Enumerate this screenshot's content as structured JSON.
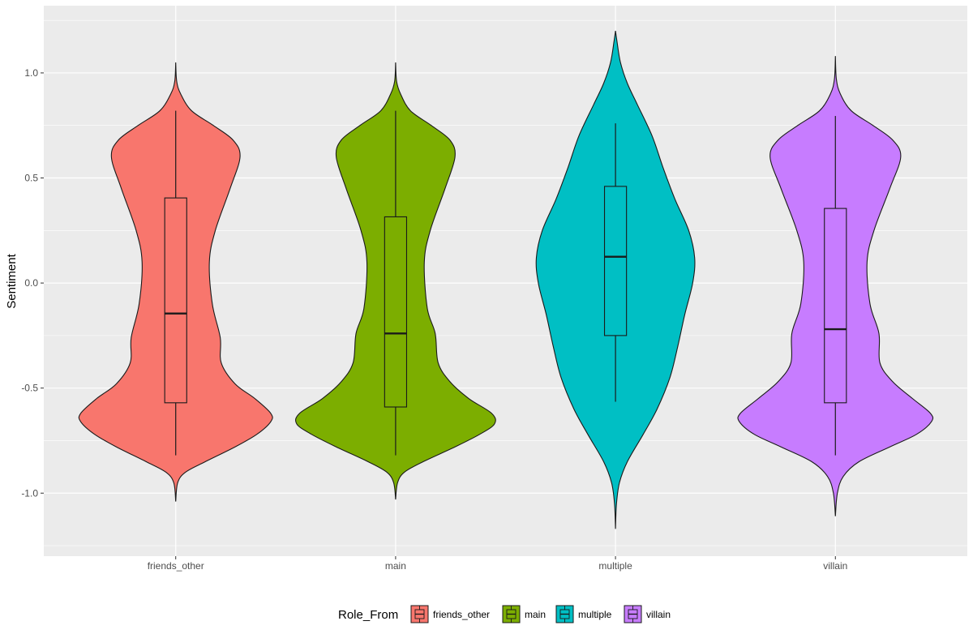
{
  "chart_data": {
    "type": "violin",
    "title": "",
    "xlabel": "",
    "ylabel": "Sentiment",
    "ylim": [
      -1.3,
      1.32
    ],
    "y_ticks": [
      "-1.0",
      "-0.5",
      "0.0",
      "0.5",
      "1.0"
    ],
    "y_tick_values": [
      -1.0,
      -0.5,
      0.0,
      0.5,
      1.0
    ],
    "grid": true,
    "legend": {
      "title": "Role_From",
      "position": "bottom"
    },
    "categories": [
      "friends_other",
      "main",
      "multiple",
      "villain"
    ],
    "colors": [
      "#f8766d",
      "#7cae00",
      "#00bfc4",
      "#c77cff"
    ],
    "series": [
      {
        "name": "friends_other",
        "violin_range": [
          -1.04,
          1.05
        ],
        "density_profile": [
          [
            -1.04,
            0.0
          ],
          [
            -0.95,
            0.02
          ],
          [
            -0.9,
            0.1
          ],
          [
            -0.85,
            0.3
          ],
          [
            -0.78,
            0.6
          ],
          [
            -0.72,
            0.82
          ],
          [
            -0.66,
            0.96
          ],
          [
            -0.62,
            0.96
          ],
          [
            -0.55,
            0.8
          ],
          [
            -0.48,
            0.6
          ],
          [
            -0.38,
            0.46
          ],
          [
            -0.26,
            0.45
          ],
          [
            -0.1,
            0.37
          ],
          [
            0.1,
            0.34
          ],
          [
            0.25,
            0.4
          ],
          [
            0.45,
            0.55
          ],
          [
            0.6,
            0.65
          ],
          [
            0.68,
            0.58
          ],
          [
            0.75,
            0.38
          ],
          [
            0.82,
            0.16
          ],
          [
            0.9,
            0.05
          ],
          [
            0.96,
            0.01
          ],
          [
            1.05,
            0.0
          ]
        ],
        "box": {
          "whisker_low": -0.82,
          "q1": -0.57,
          "median": -0.145,
          "q3": 0.405,
          "whisker_high": 0.82
        }
      },
      {
        "name": "main",
        "violin_range": [
          -1.03,
          1.05
        ],
        "density_profile": [
          [
            -1.03,
            0.0
          ],
          [
            -0.95,
            0.02
          ],
          [
            -0.9,
            0.09
          ],
          [
            -0.85,
            0.28
          ],
          [
            -0.78,
            0.6
          ],
          [
            -0.72,
            0.85
          ],
          [
            -0.67,
            1.0
          ],
          [
            -0.62,
            0.97
          ],
          [
            -0.55,
            0.74
          ],
          [
            -0.47,
            0.55
          ],
          [
            -0.38,
            0.43
          ],
          [
            -0.24,
            0.4
          ],
          [
            -0.12,
            0.32
          ],
          [
            0.1,
            0.29
          ],
          [
            0.25,
            0.35
          ],
          [
            0.45,
            0.5
          ],
          [
            0.6,
            0.6
          ],
          [
            0.68,
            0.55
          ],
          [
            0.75,
            0.36
          ],
          [
            0.82,
            0.15
          ],
          [
            0.9,
            0.05
          ],
          [
            0.96,
            0.01
          ],
          [
            1.05,
            0.0
          ]
        ],
        "box": {
          "whisker_low": -0.82,
          "q1": -0.59,
          "median": -0.24,
          "q3": 0.315,
          "whisker_high": 0.82
        }
      },
      {
        "name": "multiple",
        "violin_range": [
          -1.17,
          1.2
        ],
        "density_profile": [
          [
            -1.17,
            0.0
          ],
          [
            -1.05,
            0.01
          ],
          [
            -0.95,
            0.04
          ],
          [
            -0.85,
            0.12
          ],
          [
            -0.72,
            0.28
          ],
          [
            -0.6,
            0.42
          ],
          [
            -0.45,
            0.55
          ],
          [
            -0.3,
            0.63
          ],
          [
            -0.15,
            0.7
          ],
          [
            0.0,
            0.78
          ],
          [
            0.12,
            0.8
          ],
          [
            0.25,
            0.74
          ],
          [
            0.4,
            0.6
          ],
          [
            0.55,
            0.48
          ],
          [
            0.7,
            0.37
          ],
          [
            0.85,
            0.22
          ],
          [
            0.95,
            0.12
          ],
          [
            1.05,
            0.05
          ],
          [
            1.15,
            0.015
          ],
          [
            1.2,
            0.0
          ]
        ],
        "box": {
          "whisker_low": -0.565,
          "q1": -0.25,
          "median": 0.125,
          "q3": 0.46,
          "whisker_high": 0.76
        }
      },
      {
        "name": "villain",
        "violin_range": [
          -1.11,
          1.08
        ],
        "density_profile": [
          [
            -1.11,
            0.0
          ],
          [
            -1.0,
            0.02
          ],
          [
            -0.92,
            0.08
          ],
          [
            -0.85,
            0.24
          ],
          [
            -0.78,
            0.55
          ],
          [
            -0.72,
            0.82
          ],
          [
            -0.66,
            0.97
          ],
          [
            -0.62,
            0.96
          ],
          [
            -0.55,
            0.78
          ],
          [
            -0.47,
            0.58
          ],
          [
            -0.38,
            0.45
          ],
          [
            -0.24,
            0.44
          ],
          [
            -0.1,
            0.35
          ],
          [
            0.1,
            0.32
          ],
          [
            0.25,
            0.39
          ],
          [
            0.45,
            0.55
          ],
          [
            0.6,
            0.66
          ],
          [
            0.68,
            0.58
          ],
          [
            0.75,
            0.38
          ],
          [
            0.82,
            0.16
          ],
          [
            0.9,
            0.05
          ],
          [
            0.97,
            0.01
          ],
          [
            1.08,
            0.0
          ]
        ],
        "box": {
          "whisker_low": -0.82,
          "q1": -0.57,
          "median": -0.22,
          "q3": 0.355,
          "whisker_high": 0.795
        }
      }
    ]
  }
}
